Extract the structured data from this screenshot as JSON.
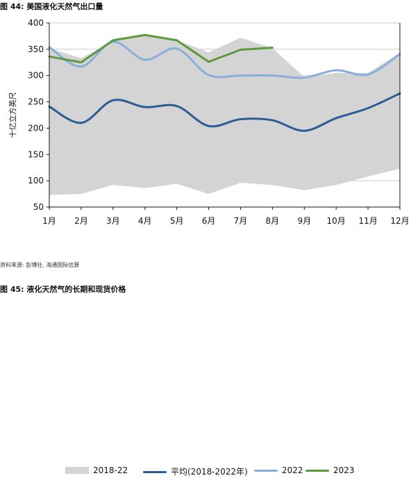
{
  "figure_title": "图 44:  美国液化天然气出口量",
  "next_figure_title": "图 45:  液化天然气的长期和现货价格",
  "source_note": "资料来源: 彭博社, 海通国际估算",
  "colors": {
    "band": "#d4d4d4",
    "avg": "#2b5a94",
    "y2022": "#8aaedb",
    "y2023": "#5a9a3a"
  },
  "chart_data": {
    "type": "line",
    "title": "",
    "xlabel": "",
    "ylabel": "十亿立方英尺",
    "ylim": [
      50,
      400
    ],
    "yticks": [
      50,
      100,
      150,
      200,
      250,
      300,
      350,
      400
    ],
    "grid": "horizontal",
    "categories": [
      "1月",
      "2月",
      "3月",
      "4月",
      "5月",
      "6月",
      "7月",
      "8月",
      "9月",
      "10月",
      "11月",
      "12月"
    ],
    "range": {
      "name": "2018-22",
      "low": [
        73,
        75,
        92,
        86,
        94,
        75,
        96,
        92,
        82,
        92,
        108,
        123
      ],
      "high": [
        352,
        333,
        365,
        377,
        367,
        344,
        372,
        352,
        297,
        305,
        305,
        343
      ]
    },
    "series": [
      {
        "name": "平均(2018-2022年)",
        "values": [
          241,
          210,
          253,
          240,
          242,
          204,
          217,
          215,
          195,
          219,
          238,
          266
        ]
      },
      {
        "name": "2022",
        "values": [
          354,
          317,
          364,
          330,
          351,
          301,
          300,
          300,
          296,
          310,
          302,
          341
        ]
      },
      {
        "name": "2023",
        "values": [
          336,
          325,
          367,
          377,
          367,
          326,
          349,
          353,
          null,
          null,
          null,
          null
        ]
      }
    ]
  }
}
